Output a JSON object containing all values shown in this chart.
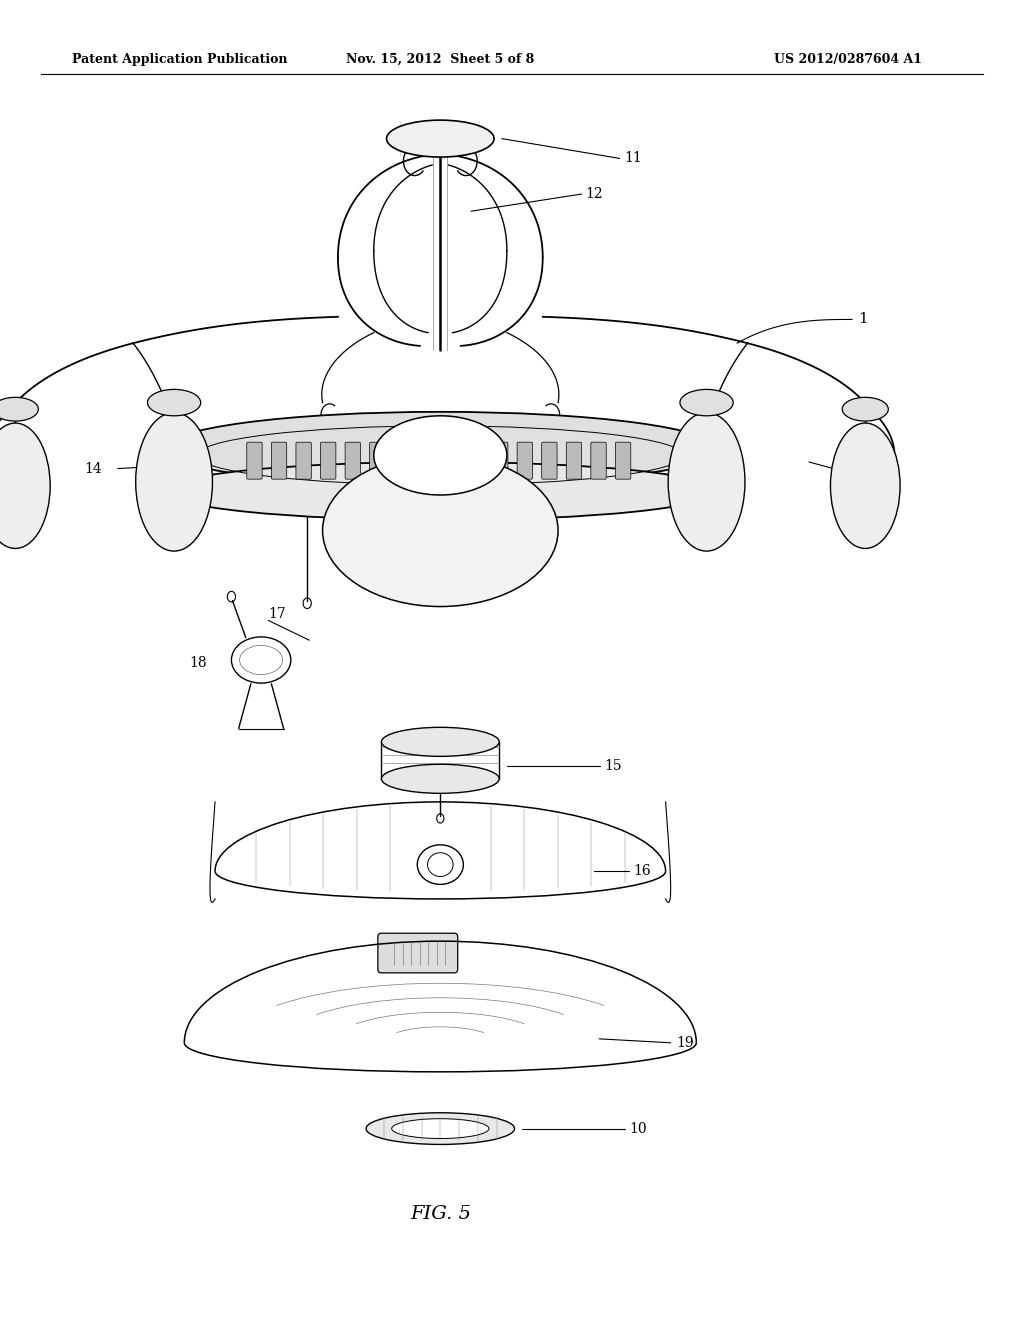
{
  "bg_color": "#ffffff",
  "header_left": "Patent Application Publication",
  "header_center": "Nov. 15, 2012  Sheet 5 of 8",
  "header_right": "US 2012/0287604 A1",
  "figure_label": "FIG. 5",
  "line_color": "#000000",
  "gray": "#666666",
  "light_gray": "#cccccc",
  "fill_gray": "#e8e8e8"
}
